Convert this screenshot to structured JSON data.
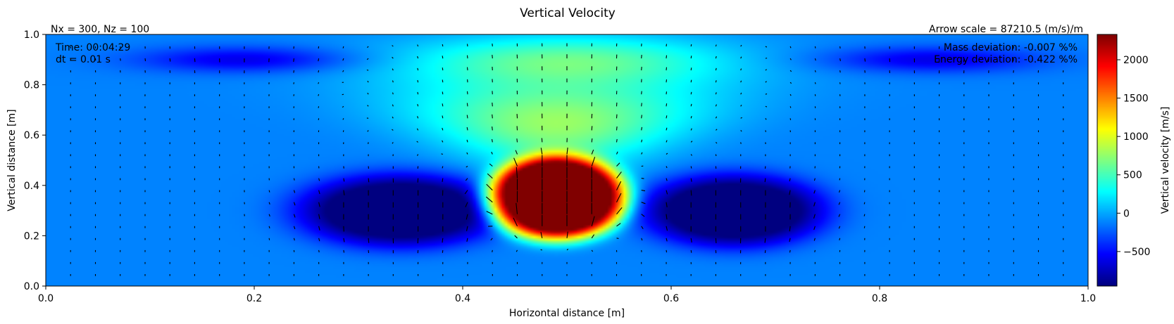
{
  "chart_data": {
    "type": "heatmap",
    "title": "Vertical Velocity",
    "xlabel": "Horizontal distance [m]",
    "ylabel": "Vertical distance [m]",
    "xlim": [
      0.0,
      1.0
    ],
    "ylim": [
      0.0,
      1.0
    ],
    "x_ticks": [
      "0.0",
      "0.2",
      "0.4",
      "0.6",
      "0.8",
      "1.0"
    ],
    "y_ticks": [
      "0.0",
      "0.2",
      "0.4",
      "0.6",
      "0.8",
      "1.0"
    ],
    "grid": false,
    "colormap": "jet",
    "colorbar": {
      "label": "Vertical velocity [m/s]",
      "range": [
        -950,
        2330
      ],
      "ticks": [
        "−500",
        "0",
        "500",
        "1000",
        "1500",
        "2000"
      ]
    },
    "top_left_label": "Nx = 300, Nz = 100",
    "top_right_label": "Arrow scale = 87210.5 (m/s)/m",
    "annotations_left": [
      "Time: 00:04:29",
      "dt = 0.01 s"
    ],
    "annotations_right": [
      "Mass deviation: -0.007 %%",
      "Energy deviation: -0.422 %%"
    ],
    "field_features": [
      {
        "kind": "updraft",
        "center": [
          0.49,
          0.35
        ],
        "radius": [
          0.065,
          0.16
        ],
        "peak": 2330
      },
      {
        "kind": "downdraft",
        "center": [
          0.34,
          0.3
        ],
        "radius": [
          0.095,
          0.14
        ],
        "peak": -950
      },
      {
        "kind": "downdraft",
        "center": [
          0.66,
          0.3
        ],
        "radius": [
          0.085,
          0.14
        ],
        "peak": -950
      },
      {
        "kind": "weak_updraft_column",
        "center": [
          0.5,
          0.9
        ],
        "radius": [
          0.15,
          0.1
        ],
        "peak": 650
      },
      {
        "kind": "weak_downdraft",
        "center": [
          0.19,
          0.9
        ],
        "radius": [
          0.1,
          0.05
        ],
        "peak": -500
      },
      {
        "kind": "weak_downdraft",
        "center": [
          0.85,
          0.9
        ],
        "radius": [
          0.1,
          0.05
        ],
        "peak": -500
      }
    ]
  }
}
